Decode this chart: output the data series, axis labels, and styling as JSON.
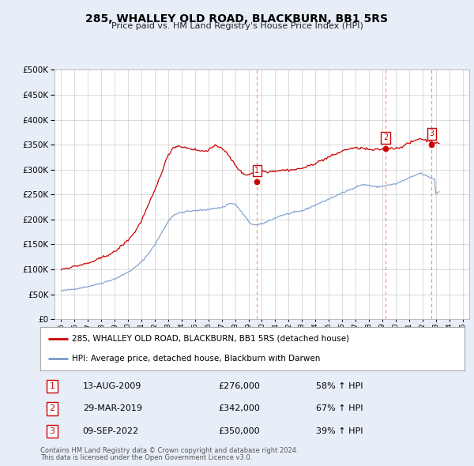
{
  "title": "285, WHALLEY OLD ROAD, BLACKBURN, BB1 5RS",
  "subtitle": "Price paid vs. HM Land Registry's House Price Index (HPI)",
  "red_label": "285, WHALLEY OLD ROAD, BLACKBURN, BB1 5RS (detached house)",
  "blue_label": "HPI: Average price, detached house, Blackburn with Darwen",
  "footer1": "Contains HM Land Registry data © Crown copyright and database right 2024.",
  "footer2": "This data is licensed under the Open Government Licence v3.0.",
  "sales": [
    {
      "num": 1,
      "date": "13-AUG-2009",
      "price": 276000,
      "pct": "58%",
      "dir": "↑",
      "x": 2009.62
    },
    {
      "num": 2,
      "date": "29-MAR-2019",
      "price": 342000,
      "pct": "67%",
      "dir": "↑",
      "x": 2019.24
    },
    {
      "num": 3,
      "date": "09-SEP-2022",
      "price": 350000,
      "pct": "39%",
      "dir": "↑",
      "x": 2022.69
    }
  ],
  "ylim": [
    0,
    500000
  ],
  "yticks": [
    0,
    50000,
    100000,
    150000,
    200000,
    250000,
    300000,
    350000,
    400000,
    450000,
    500000
  ],
  "xlim": [
    1994.5,
    2025.5
  ],
  "background_color": "#e8eef8",
  "plot_bg": "#ffffff",
  "red_color": "#cc0000",
  "blue_color": "#7799cc",
  "dashed_color": "#ff8888",
  "hpi_y": [
    57000,
    57300,
    57600,
    57900,
    58200,
    58500,
    58800,
    59100,
    59400,
    59700,
    60000,
    60300,
    60700,
    61100,
    61500,
    61900,
    62300,
    62700,
    63100,
    63500,
    63900,
    64300,
    64800,
    65300,
    65800,
    66300,
    66800,
    67300,
    67800,
    68300,
    68800,
    69400,
    70000,
    70600,
    71200,
    71800,
    72400,
    73100,
    73800,
    74500,
    75200,
    75900,
    76600,
    77300,
    78000,
    78700,
    79400,
    80100,
    81000,
    82000,
    83000,
    84000,
    85000,
    86200,
    87400,
    88600,
    89800,
    91000,
    92200,
    93400,
    94600,
    96000,
    97400,
    98800,
    100200,
    101800,
    103400,
    105200,
    107000,
    109000,
    111000,
    113000,
    115000,
    117500,
    120000,
    122500,
    125000,
    128000,
    131000,
    134000,
    137000,
    140000,
    143000,
    146000,
    149000,
    153000,
    157000,
    161000,
    165000,
    169000,
    173000,
    177000,
    181000,
    185000,
    189000,
    193000,
    196000,
    199000,
    202000,
    205000,
    207000,
    209000,
    210000,
    211000,
    212000,
    212500,
    213000,
    213500,
    214000,
    214500,
    215000,
    215500,
    216000,
    216200,
    216400,
    216600,
    216800,
    217000,
    217200,
    217400,
    217600,
    217800,
    218000,
    218200,
    218400,
    218600,
    218800,
    219000,
    219200,
    219500,
    219800,
    220100,
    220400,
    220700,
    221000,
    221300,
    221600,
    221900,
    222200,
    222500,
    222800,
    223100,
    223400,
    223700,
    224000,
    225000,
    226000,
    227000,
    228000,
    229500,
    231000,
    232000,
    232500,
    232000,
    231500,
    231000,
    230000,
    228000,
    226000,
    223000,
    220000,
    217000,
    214000,
    211000,
    208000,
    205000,
    202000,
    199000,
    196000,
    194000,
    192500,
    191000,
    190000,
    189500,
    189000,
    189000,
    189200,
    189500,
    190000,
    190500,
    191000,
    192000,
    193000,
    194000,
    195000,
    196000,
    197000,
    198000,
    199000,
    200000,
    201000,
    202000,
    203000,
    204000,
    205000,
    206000,
    207000,
    208000,
    208500,
    209000,
    209500,
    210000,
    210500,
    211000,
    211500,
    212000,
    212500,
    213000,
    213500,
    214000,
    214500,
    215000,
    215500,
    216000,
    216500,
    217000,
    217500,
    218000,
    219000,
    220000,
    221000,
    222000,
    223000,
    224000,
    225000,
    226000,
    227000,
    228000,
    229000,
    230000,
    231000,
    232000,
    233000,
    234000,
    235000,
    236000,
    237000,
    238000,
    239000,
    240000,
    241000,
    242000,
    243000,
    244000,
    245000,
    246000,
    247000,
    248000,
    249000,
    250000,
    251000,
    252000,
    253000,
    254000,
    255000,
    256000,
    257000,
    258000,
    259000,
    260000,
    261000,
    262000,
    263000,
    264000,
    265000,
    266000,
    267000,
    268000,
    268500,
    269000,
    269200,
    269400,
    269500,
    269400,
    269200,
    269000,
    268500,
    268000,
    267500,
    267000,
    266500,
    266000,
    265700,
    265500,
    265600,
    265800,
    266000,
    266300,
    266600,
    267000,
    267400,
    267800,
    268200,
    268600,
    269000,
    269400,
    269800,
    270200,
    270600,
    271000,
    271500,
    272000,
    273000,
    274000,
    275000,
    276000,
    277000,
    278000,
    279000,
    280000,
    281000,
    282000,
    283000,
    284000,
    285000,
    286000,
    287000,
    288000,
    289000,
    290000,
    291000,
    292000,
    292500,
    292000,
    291000,
    290000,
    289000,
    288000,
    287000,
    286000,
    285000,
    284000,
    283000,
    282000,
    281000,
    280000,
    252000,
    253000,
    254500,
    256000
  ],
  "red_y": [
    100000,
    100500,
    101000,
    101500,
    102000,
    102500,
    103000,
    103500,
    104000,
    104500,
    105000,
    105500,
    106000,
    106500,
    107000,
    107500,
    108000,
    108500,
    109000,
    109500,
    110000,
    110500,
    111000,
    111500,
    112000,
    112800,
    113600,
    114400,
    115200,
    116000,
    117000,
    118000,
    119000,
    120000,
    121000,
    122000,
    123000,
    124000,
    125000,
    126000,
    127000,
    128000,
    129000,
    130000,
    131000,
    132000,
    133000,
    134000,
    135000,
    137000,
    139000,
    141000,
    143000,
    145000,
    147000,
    149000,
    151000,
    153000,
    155000,
    157000,
    159000,
    161500,
    164000,
    166500,
    169000,
    172000,
    175000,
    178500,
    182000,
    186000,
    190000,
    194000,
    198000,
    203000,
    208000,
    213000,
    218000,
    223000,
    228000,
    233000,
    238000,
    243000,
    248000,
    253000,
    258000,
    264000,
    270000,
    276000,
    282000,
    288000,
    294000,
    300000,
    306000,
    312000,
    318000,
    324000,
    328000,
    332000,
    336000,
    340000,
    343000,
    345000,
    346000,
    346500,
    347000,
    347200,
    347000,
    346500,
    346000,
    345500,
    345000,
    344500,
    344000,
    343500,
    343000,
    342500,
    342000,
    341500,
    341000,
    340500,
    340000,
    339500,
    339000,
    338500,
    338000,
    337500,
    337000,
    337000,
    337500,
    338000,
    338500,
    339000,
    340000,
    341000,
    342000,
    343500,
    345000,
    346000,
    346500,
    347000,
    347000,
    346500,
    346000,
    345000,
    344000,
    342000,
    340000,
    337000,
    334000,
    331000,
    328000,
    325000,
    322000,
    319000,
    316000,
    313000,
    310000,
    307000,
    304000,
    301000,
    298000,
    296000,
    294000,
    292500,
    291000,
    290500,
    290000,
    290000,
    290500,
    291000,
    292000,
    293000,
    294000,
    295000,
    296000,
    297000,
    297500,
    298000,
    298200,
    298300,
    298000,
    297500,
    297000,
    296500,
    296000,
    296000,
    296200,
    296500,
    296800,
    297000,
    297200,
    297400,
    297600,
    297800,
    298000,
    298200,
    298400,
    298600,
    298700,
    298800,
    298900,
    299000,
    299100,
    299200,
    299300,
    299400,
    299500,
    299600,
    299700,
    299800,
    300000,
    300500,
    301000,
    301500,
    302000,
    302500,
    303000,
    303500,
    304000,
    304500,
    305000,
    306000,
    307000,
    308000,
    309000,
    310000,
    311000,
    312000,
    313000,
    314000,
    315000,
    316000,
    317000,
    318000,
    319000,
    320000,
    321000,
    322000,
    323000,
    324000,
    325000,
    326000,
    327000,
    328000,
    329000,
    330000,
    331000,
    332000,
    333000,
    334000,
    335000,
    336000,
    337000,
    338000,
    339000,
    340000,
    340500,
    341000,
    341500,
    342000,
    342300,
    342500,
    342600,
    342700,
    342800,
    342900,
    343000,
    343100,
    343200,
    343300,
    343000,
    342500,
    342000,
    341500,
    341000,
    340500,
    340000,
    339500,
    339300,
    339200,
    339300,
    339500,
    339800,
    340000,
    340200,
    340400,
    340600,
    340800,
    341000,
    341200,
    341500,
    342000,
    342500,
    343000,
    343300,
    343500,
    343500,
    343300,
    343000,
    342700,
    342500,
    343000,
    343500,
    344000,
    345000,
    346000,
    347000,
    348000,
    349000,
    350000,
    351000,
    352000,
    353000,
    354000,
    355000,
    356000,
    357000,
    358000,
    359000,
    360000,
    361000,
    362000,
    362500,
    362000,
    361000,
    360000,
    359500,
    359000,
    358500,
    358000,
    357500,
    357000,
    356500,
    356000,
    355500,
    355000,
    354000,
    353000,
    352000,
    351000
  ]
}
